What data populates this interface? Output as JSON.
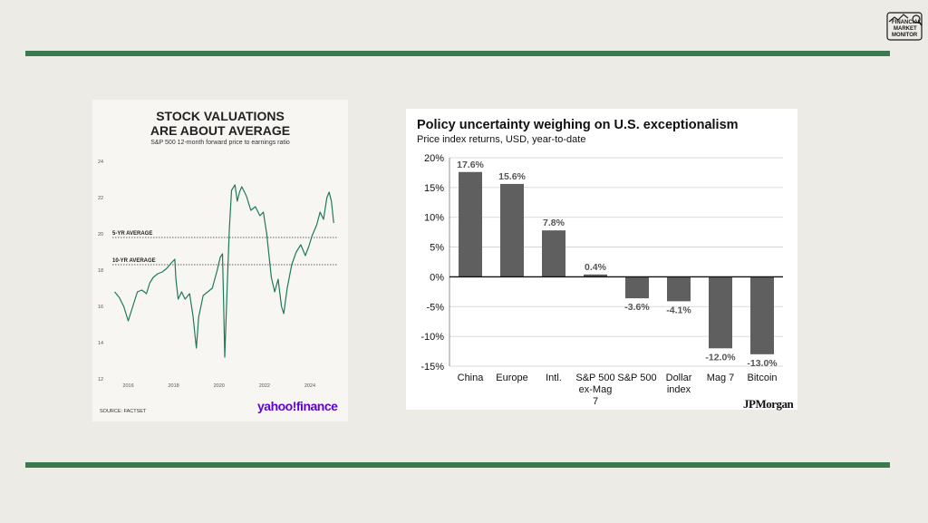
{
  "logo": {
    "text": [
      "FINANCIAL",
      "MARKET",
      "MONITOR"
    ]
  },
  "left_chart": {
    "title_line1": "STOCK VALUATIONS",
    "title_line2": "ARE ABOUT AVERAGE",
    "subtitle": "S&P 500 12-month forward price to earnings ratio",
    "source": "SOURCE: FACTSET",
    "brand": "yahoo!finance"
  },
  "right_chart": {
    "title": "Policy uncertainty weighing on U.S. exceptionalism",
    "subtitle": "Price index returns, USD, year-to-date",
    "brand": "JPMorgan"
  },
  "colors": {
    "accent_green": "#3b7a4e",
    "line_green": "#1f7a57",
    "bar_gray": "#5f5f5f",
    "yahoo_purple": "#5f01d1"
  },
  "chart_data": [
    {
      "type": "line",
      "title": "STOCK VALUATIONS ARE ABOUT AVERAGE",
      "subtitle": "S&P 500 12-month forward price to earnings ratio",
      "ylim": [
        12,
        24
      ],
      "y_ticks": [
        "24",
        "22",
        "20",
        "18",
        "16",
        "14",
        "12"
      ],
      "xlim": [
        2015.3,
        2025.2
      ],
      "x_ticks": [
        "2016",
        "2018",
        "2020",
        "2022",
        "2024"
      ],
      "grid": false,
      "reference_lines": [
        {
          "label": "5-YR AVERAGE",
          "value": 19.8
        },
        {
          "label": "10-YR AVERAGE",
          "value": 18.3
        }
      ],
      "series": [
        {
          "x": [
            2015.4,
            2015.6,
            2015.8,
            2016.0,
            2016.1,
            2016.25,
            2016.4,
            2016.6,
            2016.8,
            2016.95,
            2017.1,
            2017.3,
            2017.5,
            2017.7,
            2017.9,
            2018.05,
            2018.1,
            2018.2,
            2018.35,
            2018.5,
            2018.7,
            2018.85,
            2018.95,
            2019.0,
            2019.1,
            2019.3,
            2019.5,
            2019.7,
            2019.9,
            2020.05,
            2020.15,
            2020.2,
            2020.25,
            2020.35,
            2020.45,
            2020.55,
            2020.7,
            2020.8,
            2020.9,
            2021.0,
            2021.2,
            2021.4,
            2021.6,
            2021.8,
            2021.95,
            2022.1,
            2022.3,
            2022.45,
            2022.6,
            2022.75,
            2022.85,
            2023.0,
            2023.2,
            2023.4,
            2023.6,
            2023.8,
            2023.95,
            2024.1,
            2024.3,
            2024.45,
            2024.6,
            2024.75,
            2024.85,
            2024.95,
            2025.05
          ],
          "values": [
            16.8,
            16.5,
            16.0,
            15.2,
            15.6,
            16.2,
            16.8,
            16.9,
            16.7,
            17.3,
            17.6,
            17.8,
            17.9,
            18.1,
            18.4,
            18.6,
            17.5,
            16.4,
            16.8,
            16.4,
            16.7,
            15.5,
            14.3,
            13.7,
            15.4,
            16.6,
            16.8,
            17.0,
            17.9,
            18.7,
            18.9,
            16.3,
            13.2,
            16.8,
            20.2,
            22.4,
            22.7,
            21.8,
            22.3,
            22.6,
            22.1,
            21.3,
            21.5,
            21.0,
            21.2,
            20.0,
            17.6,
            16.8,
            17.5,
            16.0,
            15.6,
            17.0,
            18.3,
            19.0,
            19.4,
            18.8,
            19.3,
            19.9,
            20.5,
            21.2,
            20.8,
            22.0,
            22.3,
            21.8,
            20.6
          ]
        }
      ]
    },
    {
      "type": "bar",
      "title": "Policy uncertainty weighing on U.S. exceptionalism",
      "subtitle": "Price index returns, USD, year-to-date",
      "categories": [
        "China",
        "Europe",
        "Intl.",
        "S&P 500 ex-Mag 7",
        "S&P 500",
        "Dollar index",
        "Mag 7",
        "Bitcoin"
      ],
      "category_lines": [
        [
          "China"
        ],
        [
          "Europe"
        ],
        [
          "Intl."
        ],
        [
          "S&P 500",
          "ex-Mag",
          "7"
        ],
        [
          "S&P 500"
        ],
        [
          "Dollar",
          "index"
        ],
        [
          "Mag 7"
        ],
        [
          "Bitcoin"
        ]
      ],
      "values": [
        17.6,
        15.6,
        7.8,
        0.4,
        -3.6,
        -4.1,
        -12.0,
        -13.0
      ],
      "labels": [
        "17.6%",
        "15.6%",
        "7.8%",
        "0.4%",
        "-3.6%",
        "-4.1%",
        "-12.0%",
        "-13.0%"
      ],
      "ylim": [
        -15,
        20
      ],
      "y_ticks": [
        "20%",
        "15%",
        "10%",
        "5%",
        "0%",
        "-5%",
        "-10%",
        "-15%"
      ],
      "grid": true
    }
  ]
}
